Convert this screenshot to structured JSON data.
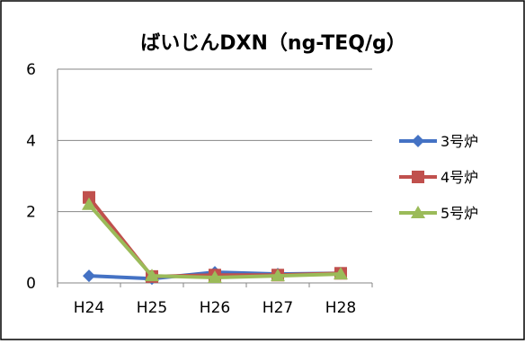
{
  "chart_data": {
    "type": "line",
    "title": "ばいじんDXN（ng-TEQ/g）",
    "categories": [
      "H24",
      "H25",
      "H26",
      "H27",
      "H28"
    ],
    "series": [
      {
        "name": "3号炉",
        "values": [
          0.2,
          0.12,
          0.3,
          0.25,
          0.27
        ],
        "color": "#4472C4",
        "marker": "diamond"
      },
      {
        "name": "4号炉",
        "values": [
          2.4,
          0.18,
          0.22,
          0.22,
          0.27
        ],
        "color": "#C0504D",
        "marker": "square"
      },
      {
        "name": "5号炉",
        "values": [
          2.2,
          0.2,
          0.15,
          0.2,
          0.25
        ],
        "color": "#9BBB59",
        "marker": "triangle"
      }
    ],
    "ylim": [
      0,
      6
    ],
    "yticks": [
      "0",
      "2",
      "4",
      "6"
    ],
    "grid": true,
    "legend": "right"
  }
}
